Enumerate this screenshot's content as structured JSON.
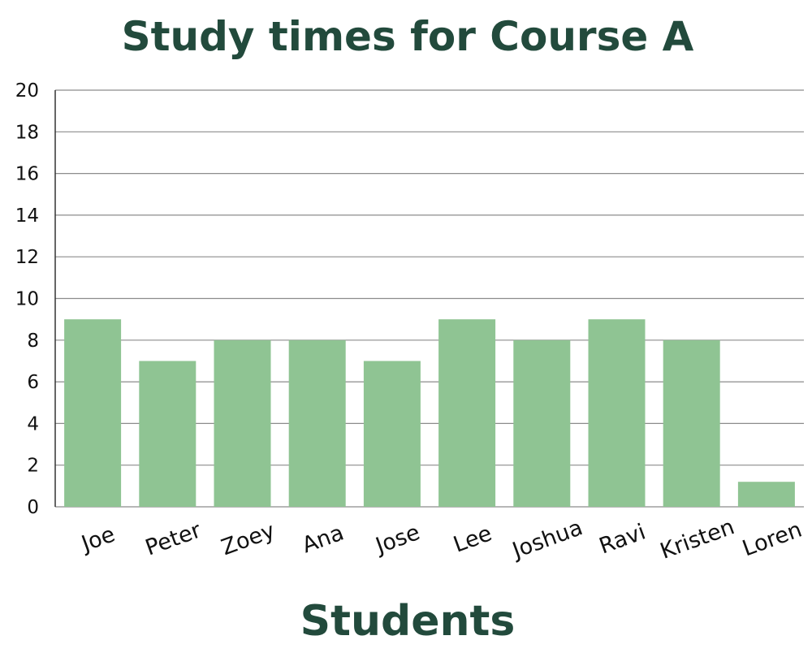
{
  "chart_data": {
    "type": "bar",
    "title": "Study times for Course A",
    "xlabel": "Students",
    "ylabel": "",
    "categories": [
      "Joe",
      "Peter",
      "Zoey",
      "Ana",
      "Jose",
      "Lee",
      "Joshua",
      "Ravi",
      "Kristen",
      "Loren"
    ],
    "values": [
      9,
      7,
      8,
      8,
      7,
      9,
      8,
      9,
      8,
      1.2
    ],
    "ylim": [
      0,
      20
    ],
    "yticks": [
      "0",
      "2",
      "4",
      "6",
      "8",
      "10",
      "12",
      "14",
      "16",
      "18",
      "20"
    ],
    "grid": true,
    "legend": "none",
    "colors": {
      "bar": "#8fc493",
      "title": "#224a3c",
      "grid": "#8c8c8c"
    }
  }
}
